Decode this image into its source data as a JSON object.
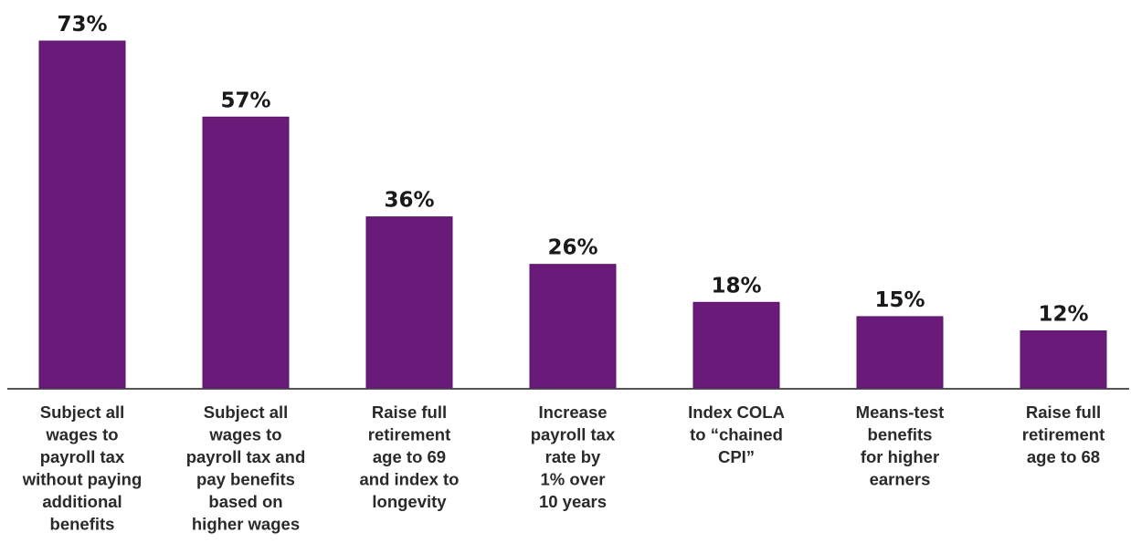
{
  "chart_data": {
    "type": "bar",
    "categories": [
      [
        "Subject all",
        "wages to",
        "payroll tax",
        "without paying",
        "additional",
        "benefits"
      ],
      [
        "Subject all",
        "wages to",
        "payroll tax and",
        "pay benefits",
        "based on",
        "higher wages"
      ],
      [
        "Raise full",
        "retirement",
        "age to 69",
        "and index to",
        "longevity"
      ],
      [
        "Increase",
        "payroll tax",
        "rate by",
        "1% over",
        "10 years"
      ],
      [
        "Index COLA",
        "to “chained",
        "CPI”"
      ],
      [
        "Means-test",
        "benefits",
        "for higher",
        "earners"
      ],
      [
        "Raise full",
        "retirement",
        "age to 68"
      ]
    ],
    "values": [
      73,
      57,
      36,
      26,
      18,
      15,
      12
    ],
    "value_labels": [
      "73%",
      "57%",
      "36%",
      "26%",
      "18%",
      "15%",
      "12%"
    ],
    "ylim": [
      0,
      73
    ],
    "grid": false,
    "colors": {
      "bar": "#6a1b7a",
      "bar_edge": "#5a146a",
      "baseline": "#555555"
    }
  }
}
